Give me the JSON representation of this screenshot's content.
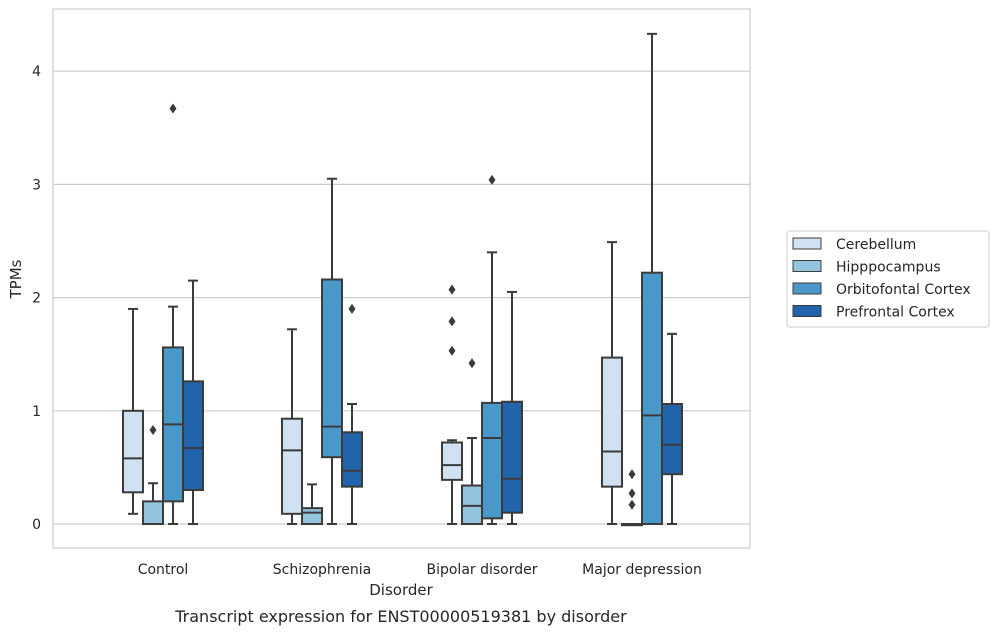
{
  "chart_data": {
    "type": "box",
    "title": "",
    "caption": "Transcript expression for ENST00000519381 by disorder",
    "xlabel": "Disorder",
    "ylabel": "TPMs",
    "ylim": [
      -0.2,
      4.55
    ],
    "yticks": [
      0,
      1,
      2,
      3,
      4
    ],
    "categories": [
      "Control",
      "Schizophrenia",
      "Bipolar disorder",
      "Major depression"
    ],
    "legend_position": "right",
    "grid": true,
    "series": [
      {
        "name": "Cerebellum",
        "color": "#d0e1f2",
        "boxes": [
          {
            "whislo": 0.09,
            "q1": 0.28,
            "med": 0.58,
            "q3": 1.0,
            "whishi": 1.9,
            "fliers": []
          },
          {
            "whislo": 0.0,
            "q1": 0.09,
            "med": 0.65,
            "q3": 0.93,
            "whishi": 1.72,
            "fliers": []
          },
          {
            "whislo": 0.0,
            "q1": 0.39,
            "med": 0.52,
            "q3": 0.72,
            "whishi": 0.74,
            "fliers": [
              1.53,
              1.79,
              2.07
            ]
          },
          {
            "whislo": 0.0,
            "q1": 0.33,
            "med": 0.64,
            "q3": 1.47,
            "whishi": 2.49,
            "fliers": []
          }
        ]
      },
      {
        "name": "Hipppocampus",
        "color": "#94c4df",
        "boxes": [
          {
            "whislo": 0.0,
            "q1": 0.0,
            "med": 0.0,
            "q3": 0.2,
            "whishi": 0.36,
            "fliers": [
              0.83
            ]
          },
          {
            "whislo": 0.0,
            "q1": 0.0,
            "med": 0.1,
            "q3": 0.14,
            "whishi": 0.35,
            "fliers": []
          },
          {
            "whislo": 0.0,
            "q1": 0.0,
            "med": 0.16,
            "q3": 0.34,
            "whishi": 0.76,
            "fliers": [
              1.42
            ]
          },
          {
            "whislo": 0.0,
            "q1": 0.0,
            "med": 0.0,
            "q3": 0.0,
            "whishi": 0.0,
            "fliers": [
              0.17,
              0.27,
              0.44
            ]
          }
        ]
      },
      {
        "name": "Orbitofontal Cortex",
        "color": "#4a98c9",
        "boxes": [
          {
            "whislo": 0.0,
            "q1": 0.2,
            "med": 0.88,
            "q3": 1.56,
            "whishi": 1.92,
            "fliers": [
              3.67
            ]
          },
          {
            "whislo": 0.0,
            "q1": 0.59,
            "med": 0.86,
            "q3": 2.16,
            "whishi": 3.05,
            "fliers": []
          },
          {
            "whislo": 0.0,
            "q1": 0.05,
            "med": 0.76,
            "q3": 1.07,
            "whishi": 2.4,
            "fliers": [
              3.04
            ]
          },
          {
            "whislo": 0.0,
            "q1": 0.0,
            "med": 0.96,
            "q3": 2.22,
            "whishi": 4.33,
            "fliers": []
          }
        ]
      },
      {
        "name": "Prefrontal Cortex",
        "color": "#2164ab",
        "boxes": [
          {
            "whislo": 0.0,
            "q1": 0.3,
            "med": 0.67,
            "q3": 1.26,
            "whishi": 2.15,
            "fliers": []
          },
          {
            "whislo": 0.0,
            "q1": 0.33,
            "med": 0.47,
            "q3": 0.81,
            "whishi": 1.06,
            "fliers": [
              1.9
            ]
          },
          {
            "whislo": 0.0,
            "q1": 0.1,
            "med": 0.4,
            "q3": 1.08,
            "whishi": 2.05,
            "fliers": []
          },
          {
            "whislo": 0.0,
            "q1": 0.44,
            "med": 0.7,
            "q3": 1.06,
            "whishi": 1.68,
            "fliers": []
          }
        ]
      }
    ]
  }
}
